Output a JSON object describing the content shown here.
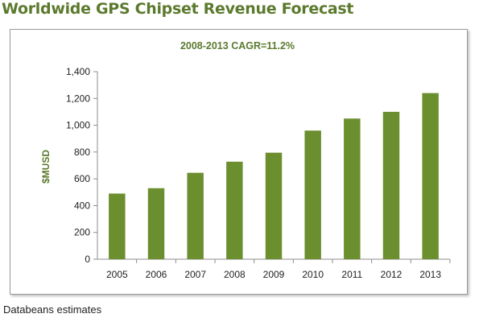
{
  "header": {
    "title": "Worldwide GPS Chipset Revenue Forecast"
  },
  "footer": {
    "source": "Databeans estimates"
  },
  "chart_data": {
    "type": "bar",
    "title": "",
    "annotation": "2008-2013  CAGR=11.2%",
    "ylabel": "$MUSD",
    "xlabel": "",
    "categories": [
      "2005",
      "2006",
      "2007",
      "2008",
      "2009",
      "2010",
      "2011",
      "2012",
      "2013"
    ],
    "values": [
      490,
      530,
      645,
      728,
      795,
      960,
      1050,
      1100,
      1240
    ],
    "ylim": [
      0,
      1400
    ],
    "yticks": [
      "0",
      "200",
      "400",
      "600",
      "800",
      "1,000",
      "1,200",
      "1,400"
    ],
    "ytick_values": [
      0,
      200,
      400,
      600,
      800,
      1000,
      1200,
      1400
    ],
    "grid": false,
    "legend": "none",
    "colors": {
      "bar": "#6b8e2f",
      "text_accent": "#5c7a2e"
    }
  }
}
